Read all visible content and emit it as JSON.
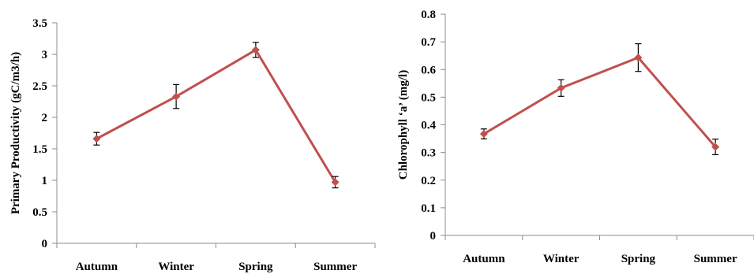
{
  "chart_data": [
    {
      "type": "line",
      "categories": [
        "Autumn",
        "Winter",
        "Spring",
        "Summer"
      ],
      "series": [
        {
          "values": [
            1.66,
            2.33,
            3.07,
            0.97
          ],
          "error": [
            0.1,
            0.19,
            0.12,
            0.09
          ]
        }
      ],
      "ylabel": "Primary Productivity (gC/m3/h)",
      "ylim": [
        0,
        3.5
      ],
      "yticks": [
        "0",
        "0.5",
        "1",
        "1.5",
        "2",
        "2.5",
        "3",
        "3.5"
      ],
      "color": "#c0504d",
      "grid": false
    },
    {
      "type": "line",
      "categories": [
        "Autumn",
        "Winter",
        "Spring",
        "Summer"
      ],
      "series": [
        {
          "values": [
            0.367,
            0.533,
            0.643,
            0.32
          ],
          "error": [
            0.018,
            0.03,
            0.05,
            0.028
          ]
        }
      ],
      "ylabel": "Chlorophyll ‘a’ (mg/l)",
      "ylim": [
        0,
        0.8
      ],
      "yticks": [
        "0",
        "0.1",
        "0.2",
        "0.3",
        "0.4",
        "0.5",
        "0.6",
        "0.7",
        "0.8"
      ],
      "color": "#c0504d",
      "grid": false
    }
  ]
}
